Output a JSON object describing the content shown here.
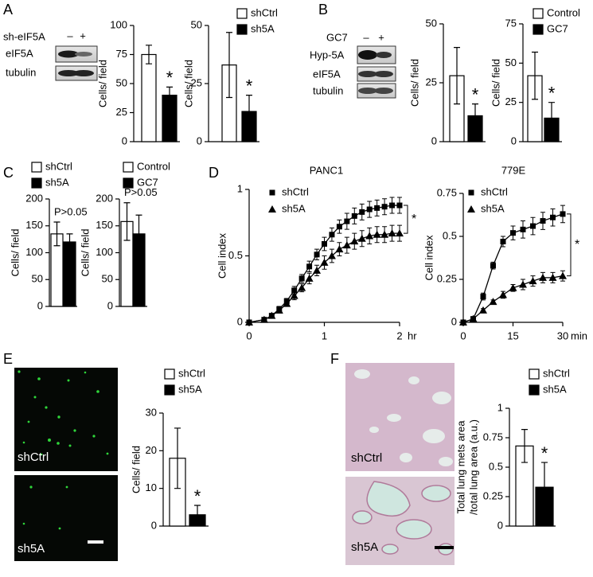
{
  "panel_letters": [
    "A",
    "B",
    "C",
    "D",
    "E",
    "F"
  ],
  "blots": [
    {
      "treatment": "sh-eIF5A",
      "lanes": [
        "–",
        "+"
      ],
      "rows": [
        "eIF5A",
        "tubulin"
      ]
    },
    {
      "treatment": "GC7",
      "lanes": [
        "–",
        "+"
      ],
      "rows": [
        "Hyp-5A",
        "eIF5A",
        "tubulin"
      ]
    }
  ],
  "images": [
    {
      "labels": [
        "shCtrl",
        "sh5A"
      ]
    },
    {
      "labels": [
        "shCtrl",
        "sh5A"
      ]
    }
  ],
  "chart_data": [
    {
      "type": "bar",
      "ylabel": "Cells/ field",
      "ylim": [
        0,
        100
      ],
      "yticks": [
        0,
        25,
        50,
        75,
        100
      ],
      "values": [
        75,
        40
      ],
      "errors": [
        8,
        7
      ],
      "colors": [
        "#ffffff",
        "#000000"
      ],
      "annotation": "*"
    },
    {
      "type": "bar",
      "ylabel": "Cells/ field",
      "ylim": [
        0,
        50
      ],
      "yticks": [
        0,
        25,
        50
      ],
      "values": [
        33,
        13
      ],
      "errors": [
        14,
        7
      ],
      "colors": [
        "#ffffff",
        "#000000"
      ],
      "legend": [
        "shCtrl",
        "sh5A"
      ],
      "annotation": "*"
    },
    {
      "type": "bar",
      "ylabel": "Cells/ field",
      "ylim": [
        0,
        50
      ],
      "yticks": [
        0,
        25,
        50
      ],
      "values": [
        28,
        11
      ],
      "errors": [
        12,
        5
      ],
      "colors": [
        "#ffffff",
        "#000000"
      ],
      "annotation": "*"
    },
    {
      "type": "bar",
      "ylabel": "Cells/ field",
      "ylim": [
        0,
        75
      ],
      "yticks": [
        0,
        25,
        50,
        75
      ],
      "values": [
        42,
        15
      ],
      "errors": [
        15,
        10
      ],
      "colors": [
        "#ffffff",
        "#000000"
      ],
      "legend": [
        "Control",
        "GC7"
      ],
      "annotation": "*"
    },
    {
      "type": "bar",
      "ylabel": "Cells/ field",
      "ylim": [
        0,
        200
      ],
      "yticks": [
        0,
        50,
        100,
        150,
        200
      ],
      "values": [
        135,
        120
      ],
      "errors": [
        22,
        15
      ],
      "colors": [
        "#ffffff",
        "#000000"
      ],
      "legend": [
        "shCtrl",
        "sh5A"
      ],
      "annotation": "P>0.05"
    },
    {
      "type": "bar",
      "ylabel": "Cells/ field",
      "ylim": [
        0,
        200
      ],
      "yticks": [
        0,
        50,
        100,
        150,
        200
      ],
      "values": [
        158,
        135
      ],
      "errors": [
        35,
        35
      ],
      "colors": [
        "#ffffff",
        "#000000"
      ],
      "legend": [
        "Control",
        "GC7"
      ],
      "annotation": "P>0.05"
    },
    {
      "type": "line",
      "title": "PANC1",
      "ylabel": "Cell index",
      "xlabel": "hr",
      "x": [
        0,
        0.2,
        0.3,
        0.4,
        0.5,
        0.6,
        0.7,
        0.8,
        0.9,
        1.0,
        1.1,
        1.2,
        1.3,
        1.4,
        1.5,
        1.6,
        1.7,
        1.8,
        1.9,
        2.0
      ],
      "xlim": [
        0,
        2
      ],
      "xticks": [
        0,
        1,
        2
      ],
      "ylim": [
        0,
        1
      ],
      "yticks": [
        0,
        0.5,
        1
      ],
      "series": [
        {
          "name": "shCtrl",
          "color": "#000000",
          "marker": "square",
          "values": [
            0,
            0.02,
            0.05,
            0.1,
            0.16,
            0.24,
            0.33,
            0.42,
            0.51,
            0.59,
            0.66,
            0.72,
            0.76,
            0.8,
            0.83,
            0.85,
            0.86,
            0.87,
            0.88,
            0.88
          ],
          "errors": [
            0,
            0.01,
            0.01,
            0.02,
            0.02,
            0.03,
            0.03,
            0.04,
            0.04,
            0.05,
            0.05,
            0.05,
            0.06,
            0.06,
            0.06,
            0.06,
            0.06,
            0.06,
            0.06,
            0.06
          ]
        },
        {
          "name": "sh5A",
          "color": "#000000",
          "marker": "triangle",
          "values": [
            0,
            0.02,
            0.05,
            0.09,
            0.14,
            0.2,
            0.26,
            0.33,
            0.39,
            0.45,
            0.5,
            0.55,
            0.58,
            0.61,
            0.63,
            0.65,
            0.66,
            0.66,
            0.67,
            0.67
          ],
          "errors": [
            0,
            0.01,
            0.01,
            0.02,
            0.02,
            0.03,
            0.03,
            0.04,
            0.04,
            0.05,
            0.05,
            0.05,
            0.06,
            0.06,
            0.06,
            0.06,
            0.06,
            0.06,
            0.06,
            0.06
          ]
        }
      ],
      "annotation": "*"
    },
    {
      "type": "line",
      "title": "779E",
      "ylabel": "Cell index",
      "xlabel": "min",
      "x": [
        0,
        3,
        6,
        9,
        12,
        15,
        18,
        21,
        24,
        27,
        30
      ],
      "xlim": [
        0,
        30
      ],
      "xticks": [
        0,
        15,
        30
      ],
      "ylim": [
        0,
        0.75
      ],
      "yticks": [
        0,
        0.25,
        0.5,
        0.75
      ],
      "series": [
        {
          "name": "shCtrl",
          "color": "#000000",
          "marker": "square",
          "values": [
            0,
            0.02,
            0.15,
            0.33,
            0.47,
            0.52,
            0.54,
            0.56,
            0.59,
            0.61,
            0.63
          ],
          "errors": [
            0,
            0.01,
            0.02,
            0.02,
            0.03,
            0.04,
            0.05,
            0.05,
            0.05,
            0.05,
            0.05
          ]
        },
        {
          "name": "sh5A",
          "color": "#000000",
          "marker": "triangle",
          "values": [
            0,
            0.02,
            0.07,
            0.12,
            0.16,
            0.2,
            0.22,
            0.24,
            0.26,
            0.26,
            0.27
          ],
          "errors": [
            0,
            0.01,
            0.01,
            0.01,
            0.02,
            0.02,
            0.03,
            0.03,
            0.03,
            0.03,
            0.03
          ]
        }
      ],
      "annotation": "*"
    },
    {
      "type": "bar",
      "ylabel": "Cells/ field",
      "ylim": [
        0,
        30
      ],
      "yticks": [
        0,
        10,
        20,
        30
      ],
      "values": [
        18,
        3
      ],
      "errors": [
        8,
        2.5
      ],
      "colors": [
        "#ffffff",
        "#000000"
      ],
      "legend": [
        "shCtrl",
        "sh5A"
      ],
      "annotation": "*"
    },
    {
      "type": "bar",
      "ylabel": [
        "Total lung mets area",
        "/total lung area (a.u.)"
      ],
      "ylim": [
        0,
        1
      ],
      "yticks": [
        0,
        0.25,
        0.5,
        0.75,
        1
      ],
      "values": [
        0.68,
        0.33
      ],
      "errors": [
        0.14,
        0.21
      ],
      "colors": [
        "#ffffff",
        "#000000"
      ],
      "legend": [
        "shCtrl",
        "sh5A"
      ],
      "annotation": "*"
    }
  ]
}
